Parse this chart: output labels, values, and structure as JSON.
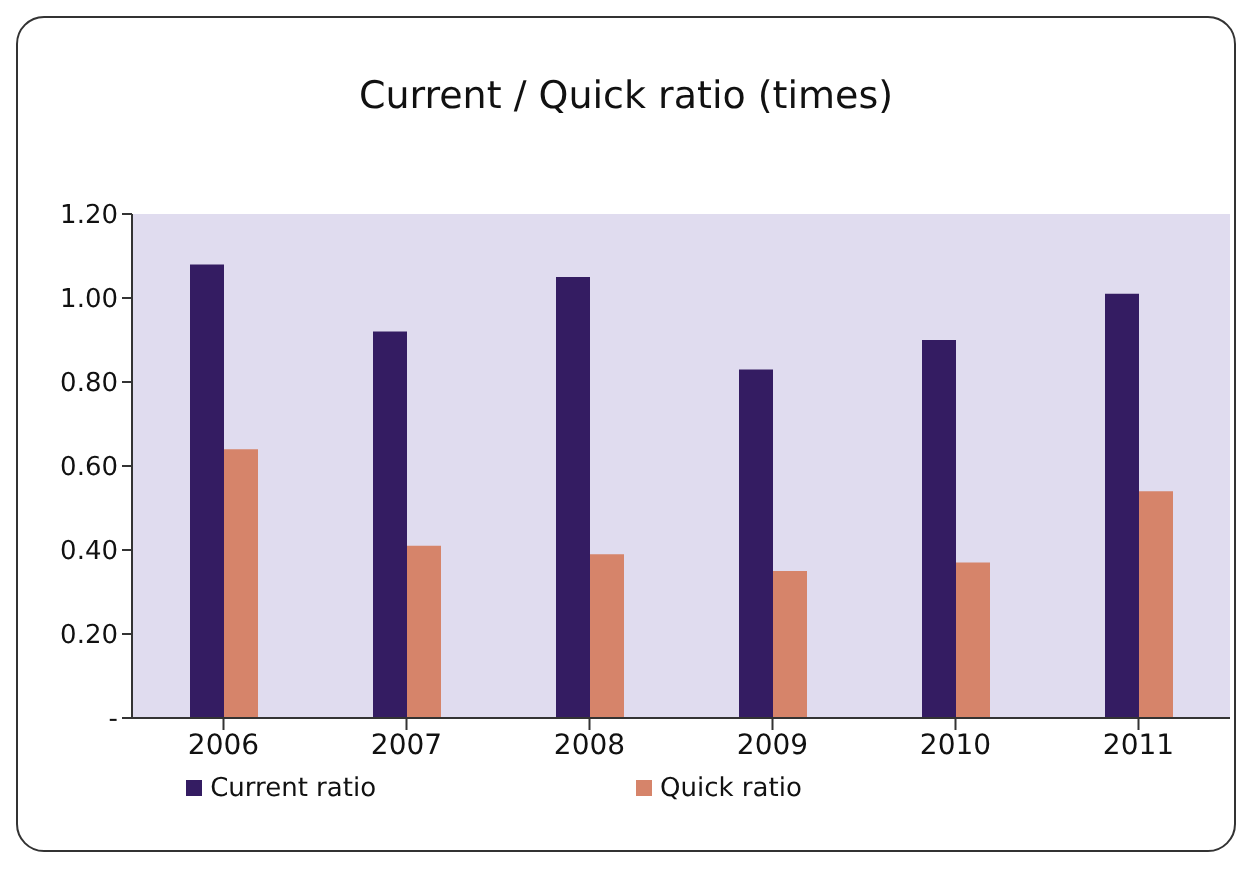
{
  "chart_data": {
    "type": "bar",
    "title": "Current / Quick ratio (times)",
    "categories": [
      "2006",
      "2007",
      "2008",
      "2009",
      "2010",
      "2011"
    ],
    "series": [
      {
        "name": "Current ratio",
        "color": "#341c62",
        "values": [
          1.08,
          0.92,
          1.05,
          0.83,
          0.9,
          1.01
        ]
      },
      {
        "name": "Quick ratio",
        "color": "#d6846a",
        "values": [
          0.64,
          0.41,
          0.39,
          0.35,
          0.37,
          0.54
        ]
      }
    ],
    "ylim": [
      0,
      1.2
    ],
    "yticks": [
      {
        "value": 0,
        "label": "-"
      },
      {
        "value": 0.2,
        "label": "0.20"
      },
      {
        "value": 0.4,
        "label": "0.40"
      },
      {
        "value": 0.6,
        "label": "0.60"
      },
      {
        "value": 0.8,
        "label": "0.80"
      },
      {
        "value": 1,
        "label": "1.00"
      },
      {
        "value": 1.2,
        "label": "1.20"
      }
    ],
    "grid": false,
    "legend": "bottom"
  }
}
